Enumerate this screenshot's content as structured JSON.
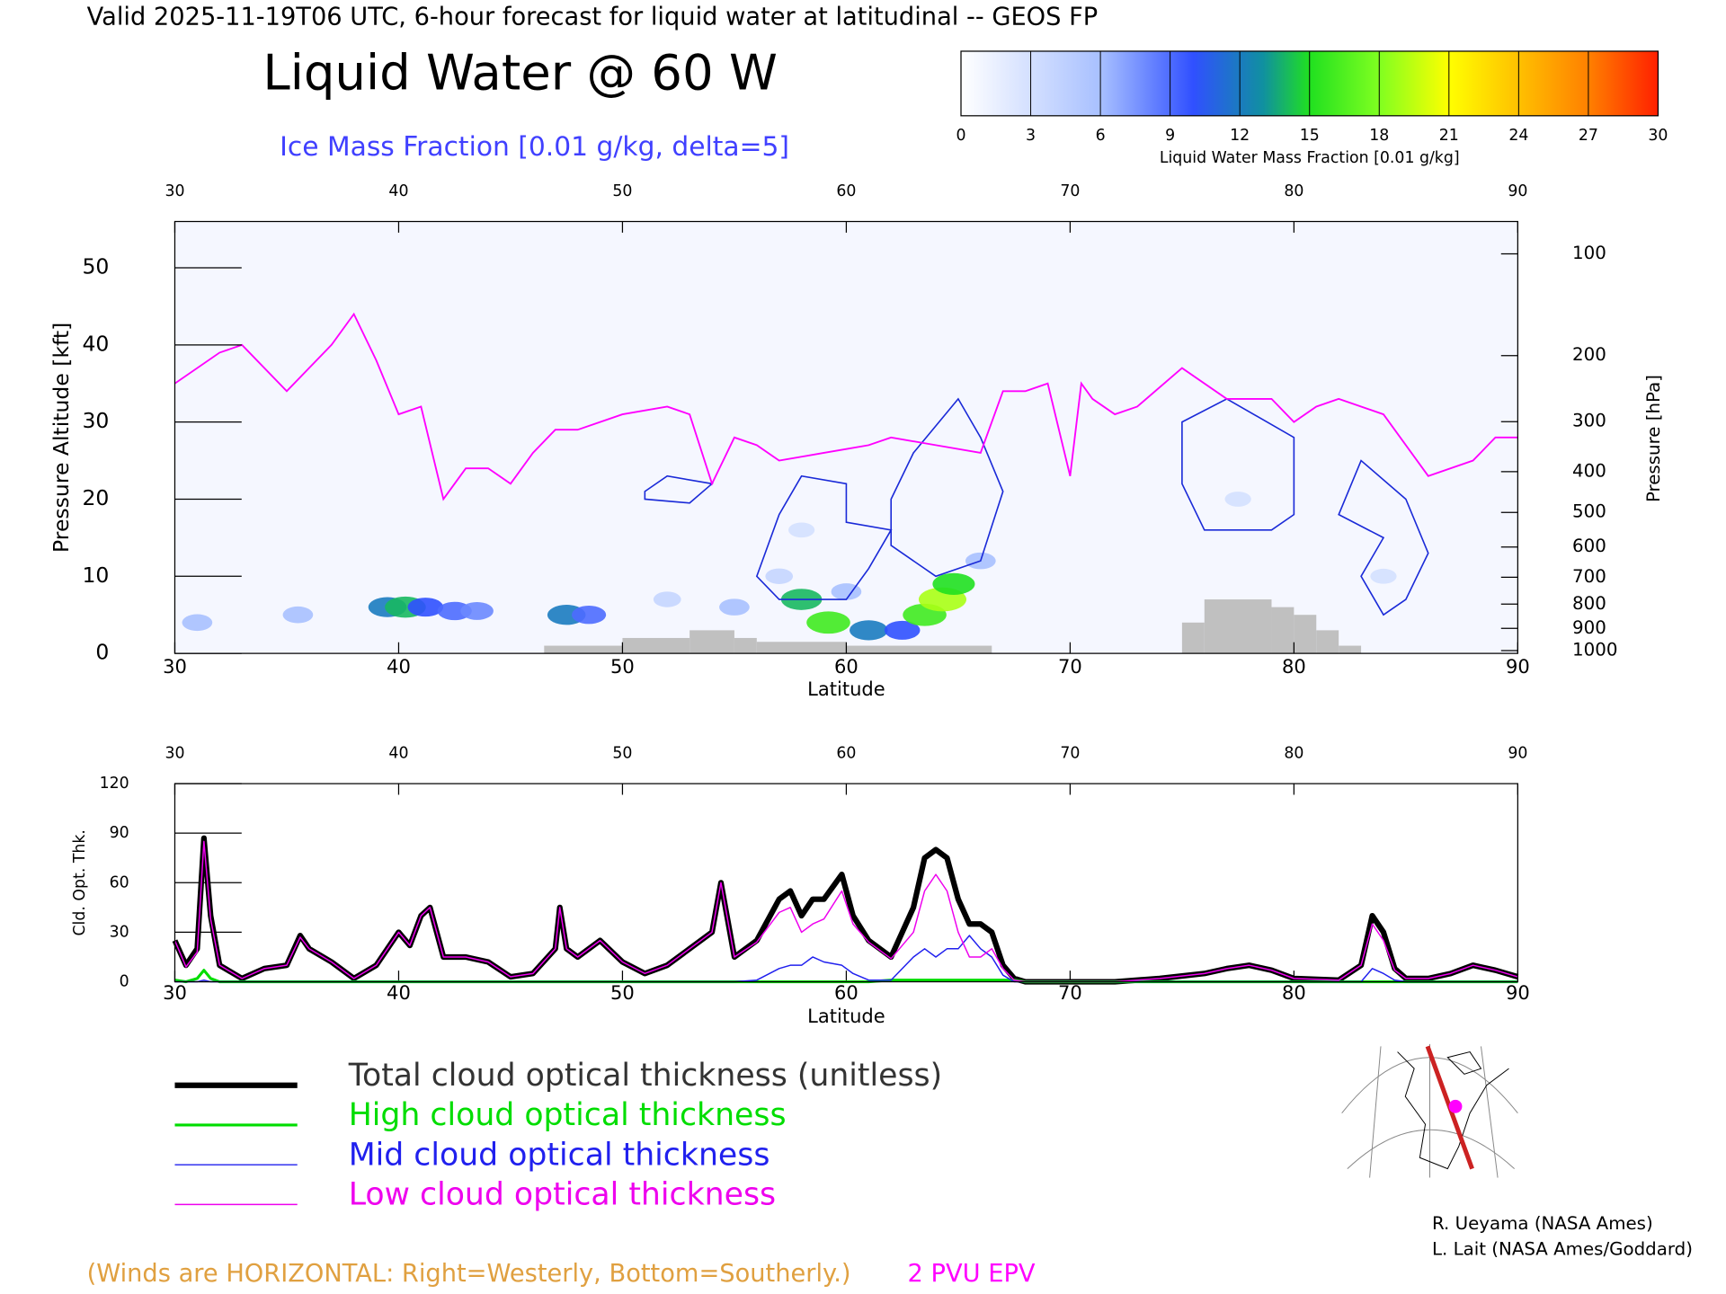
{
  "header": "Valid 2025-11-19T06 UTC, 6-hour forecast for liquid water at latitudinal -- GEOS FP",
  "chart_data": [
    {
      "type": "cross-section",
      "title": "Liquid Water @ 60 W",
      "subtitle": "Ice Mass Fraction [0.01 g/kg, delta=5]",
      "xlabel": "Latitude",
      "ylabel": "Pressure Altitude [kft]",
      "y2label": "Pressure [hPa]",
      "xlim": [
        30,
        90
      ],
      "xticks": [
        30,
        40,
        50,
        60,
        70,
        80,
        90
      ],
      "ylim": [
        0,
        56
      ],
      "yticks": [
        0,
        10,
        20,
        30,
        40,
        50
      ],
      "y2scale": "standard-atmosphere",
      "y2ticks": [
        100,
        200,
        300,
        400,
        500,
        600,
        700,
        800,
        900,
        1000
      ],
      "colorbar": {
        "label": "Liquid Water Mass Fraction [0.01 g/kg]",
        "ticks": [
          0,
          3,
          6,
          9,
          12,
          15,
          18,
          21,
          24,
          27,
          30
        ],
        "stops": [
          {
            "value": 0,
            "color": "#ffffff"
          },
          {
            "value": 6,
            "color": "#a8c0ff"
          },
          {
            "value": 10,
            "color": "#3050ff"
          },
          {
            "value": 13,
            "color": "#1090a0"
          },
          {
            "value": 15,
            "color": "#20e020"
          },
          {
            "value": 18,
            "color": "#80ff20"
          },
          {
            "value": 21,
            "color": "#ffff00"
          },
          {
            "value": 24,
            "color": "#ffc000"
          },
          {
            "value": 27,
            "color": "#ff8000"
          },
          {
            "value": 30,
            "color": "#ff2000"
          }
        ]
      },
      "liquid_water": {
        "x": [
          31,
          35.5,
          39.5,
          40.3,
          41.2,
          42.5,
          43.5,
          47.5,
          48.5,
          52,
          55,
          57,
          58,
          59.2,
          60,
          61,
          62.5,
          63.5,
          64.3,
          64.8,
          66,
          58,
          77.5,
          84
        ],
        "y": [
          4,
          5,
          6,
          6,
          6,
          5.5,
          5.5,
          5,
          5,
          7,
          6,
          10,
          7,
          4,
          8,
          3,
          3,
          5,
          7,
          9,
          12,
          16,
          20,
          10
        ],
        "values": [
          6,
          6,
          12,
          14,
          10,
          9,
          8,
          12,
          9,
          4,
          6,
          4,
          14,
          16,
          6,
          12,
          10,
          16,
          19,
          15,
          6,
          3,
          3,
          3
        ]
      },
      "ice_contours": {
        "level": 5,
        "color": "#1a2ad8",
        "paths": [
          [
            [
              51,
              21
            ],
            [
              52,
              23
            ],
            [
              54,
              22
            ],
            [
              53,
              19.5
            ],
            [
              51,
              20
            ]
          ],
          [
            [
              56,
              10
            ],
            [
              57,
              18
            ],
            [
              58,
              23
            ],
            [
              60,
              22
            ],
            [
              60,
              17
            ],
            [
              62,
              16
            ],
            [
              61,
              11
            ],
            [
              60,
              7
            ],
            [
              57,
              7
            ]
          ],
          [
            [
              62,
              20
            ],
            [
              63,
              26
            ],
            [
              65,
              33
            ],
            [
              66,
              28
            ],
            [
              67,
              21
            ],
            [
              66,
              12
            ],
            [
              64,
              10
            ],
            [
              62,
              14
            ]
          ],
          [
            [
              75,
              30
            ],
            [
              77,
              33
            ],
            [
              80,
              28
            ],
            [
              80,
              18
            ],
            [
              79,
              16
            ],
            [
              76,
              16
            ],
            [
              75,
              22
            ]
          ],
          [
            [
              82,
              18
            ],
            [
              83,
              25
            ],
            [
              85,
              20
            ],
            [
              86,
              13
            ],
            [
              85,
              7
            ],
            [
              84,
              5
            ],
            [
              83,
              10
            ],
            [
              84,
              15
            ]
          ]
        ]
      },
      "epv": {
        "name": "2 PVU EPV",
        "color": "#ff00ff",
        "x": [
          30,
          32,
          33,
          35,
          37,
          38,
          39,
          40,
          41,
          42,
          43,
          44,
          45,
          46,
          47,
          48,
          50,
          52,
          53,
          54,
          55,
          56,
          57,
          58,
          59,
          60,
          61,
          62,
          64,
          66,
          67,
          68,
          69,
          70,
          70.5,
          71,
          72,
          73,
          75,
          77,
          79,
          80,
          81,
          82,
          84,
          86,
          88,
          89,
          90
        ],
        "values": [
          35,
          39,
          40,
          34,
          40,
          44,
          38,
          31,
          32,
          20,
          24,
          24,
          22,
          26,
          29,
          29,
          31,
          32,
          31,
          22,
          28,
          27,
          25,
          25.5,
          26,
          26.5,
          27,
          28,
          27,
          26,
          34,
          34,
          35,
          23,
          35,
          33,
          31,
          32,
          37,
          33,
          33,
          30,
          32,
          33,
          31,
          23,
          25,
          28,
          28
        ]
      },
      "terrain": {
        "color": "#c0c0c0",
        "bins": [
          46.5,
          50,
          53,
          55,
          56,
          60,
          66.5,
          75,
          76,
          79,
          80,
          81,
          82,
          83
        ],
        "values": [
          1,
          2,
          3,
          2,
          1.5,
          1,
          null,
          4,
          7,
          6,
          5,
          3,
          1
        ]
      }
    },
    {
      "type": "line",
      "xlabel": "Latitude",
      "ylabel": "Cld. Opt. Thk.",
      "xlim": [
        30,
        90
      ],
      "xticks": [
        30,
        40,
        50,
        60,
        70,
        80,
        90
      ],
      "ylim": [
        0,
        120
      ],
      "yticks": [
        0,
        30,
        60,
        90,
        120
      ],
      "x": [
        30,
        30.5,
        31,
        31.3,
        31.6,
        32,
        33,
        34,
        35,
        35.6,
        36,
        37,
        38,
        39,
        39.5,
        40,
        40.5,
        41,
        41.4,
        42,
        43,
        44,
        45,
        46,
        47,
        47.2,
        47.5,
        48,
        49,
        50,
        51,
        52,
        53,
        54,
        54.4,
        55,
        56,
        57,
        57.5,
        58,
        58.5,
        59,
        59.8,
        60.3,
        61,
        62,
        63,
        63.5,
        64,
        64.5,
        65,
        65.5,
        66,
        66.5,
        67,
        67.5,
        68,
        70,
        72,
        74,
        76,
        77,
        78,
        79,
        80,
        82,
        83,
        83.5,
        84,
        84.5,
        85,
        86,
        87,
        88,
        89,
        90
      ],
      "series": [
        {
          "name": "Total cloud optical thickness (unitless)",
          "color": "#000000",
          "width": 5,
          "values": [
            25,
            10,
            20,
            87,
            40,
            10,
            2,
            8,
            10,
            28,
            20,
            12,
            2,
            10,
            20,
            30,
            22,
            40,
            45,
            15,
            15,
            12,
            3,
            5,
            20,
            45,
            20,
            15,
            25,
            12,
            5,
            10,
            20,
            30,
            60,
            15,
            25,
            50,
            55,
            40,
            50,
            50,
            65,
            40,
            25,
            15,
            45,
            75,
            80,
            75,
            50,
            35,
            35,
            30,
            10,
            2,
            0,
            0,
            0,
            2,
            5,
            8,
            10,
            7,
            2,
            1,
            10,
            40,
            30,
            8,
            2,
            2,
            5,
            10,
            7,
            3
          ]
        },
        {
          "name": "High cloud optical thickness",
          "color": "#00dd00",
          "width": 2.5,
          "values": [
            1,
            0,
            2,
            7,
            2,
            0,
            0,
            0,
            0,
            0,
            0,
            0,
            0,
            0,
            0,
            0,
            0,
            0,
            0,
            0,
            0,
            0,
            0,
            0,
            0,
            0,
            0,
            0,
            0,
            0,
            0,
            0,
            0,
            0,
            0,
            0,
            0,
            0,
            0,
            0,
            0,
            0,
            0,
            0,
            0,
            1,
            1,
            1,
            1,
            1,
            1,
            1,
            1,
            1,
            1,
            1,
            0,
            0,
            0,
            0,
            0,
            0,
            0,
            0,
            0,
            0,
            0,
            0,
            0,
            0,
            0,
            0,
            0,
            0,
            0,
            0
          ]
        },
        {
          "name": "Mid cloud optical thickness",
          "color": "#2020ee",
          "width": 1.2,
          "values": [
            0,
            0,
            0,
            1,
            0,
            0,
            0,
            0,
            0,
            0,
            0,
            0,
            0,
            0,
            0,
            0,
            0,
            0,
            0,
            0,
            0,
            0,
            0,
            0,
            0,
            0,
            0,
            0,
            0,
            0,
            0,
            0,
            0,
            0,
            0,
            0,
            1,
            8,
            10,
            10,
            15,
            12,
            10,
            5,
            1,
            1,
            15,
            20,
            15,
            20,
            20,
            28,
            20,
            15,
            4,
            0,
            0,
            0,
            0,
            0,
            0,
            0,
            0,
            0,
            0,
            0,
            0,
            8,
            5,
            1,
            0,
            0,
            0,
            0,
            0,
            0
          ]
        },
        {
          "name": "Low cloud optical thickness",
          "color": "#ee00ee",
          "width": 1.2,
          "values": [
            25,
            9,
            18,
            85,
            38,
            10,
            2,
            8,
            10,
            27,
            20,
            12,
            2,
            10,
            20,
            30,
            22,
            40,
            45,
            15,
            15,
            12,
            3,
            5,
            20,
            45,
            20,
            15,
            25,
            12,
            5,
            10,
            20,
            30,
            60,
            15,
            24,
            42,
            45,
            30,
            35,
            38,
            55,
            35,
            24,
            14,
            30,
            55,
            65,
            55,
            30,
            15,
            15,
            20,
            8,
            1,
            0,
            0,
            0,
            2,
            5,
            8,
            10,
            7,
            2,
            1,
            10,
            35,
            25,
            7,
            2,
            2,
            5,
            10,
            7,
            3
          ]
        }
      ]
    }
  ],
  "footer": {
    "winds_note": "(Winds are HORIZONTAL: Right=Westerly, Bottom=Southerly.)",
    "credits": [
      "R. Ueyama (NASA Ames)",
      "L. Lait (NASA Ames/Goddard)"
    ]
  }
}
